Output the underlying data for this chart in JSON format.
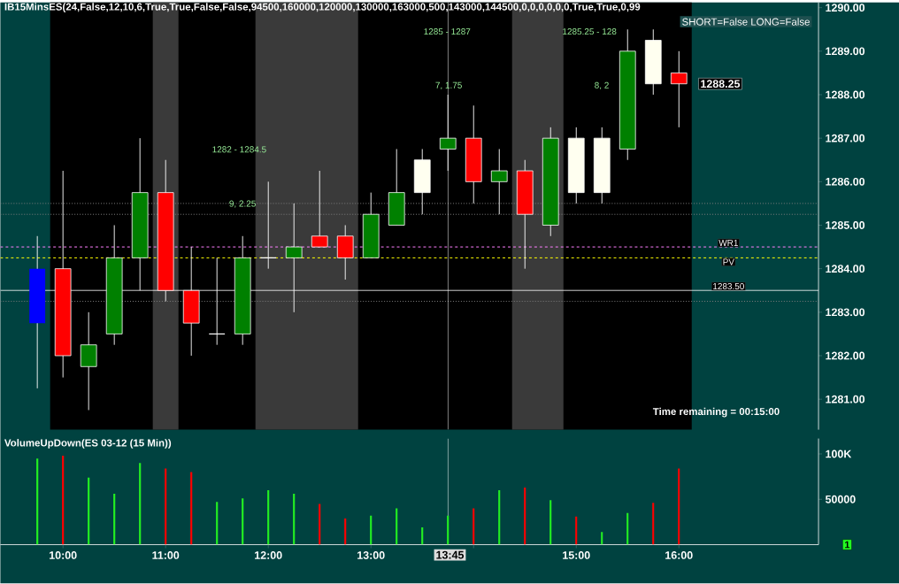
{
  "chart_data": [
    {
      "type": "candlestick",
      "title": "IB15MinsES(24,False,12,10,6,True,True,False,False,94500,160000,120000,130000,163000,500,143000,144500,0,0,0,0,0,0,True,True,0,99",
      "x": [
        9.75,
        10,
        10.25,
        10.5,
        10.75,
        11,
        11.25,
        11.5,
        11.75,
        12,
        12.25,
        12.5,
        12.75,
        13,
        13.25,
        13.5,
        13.75,
        14,
        14.25,
        14.5,
        14.75,
        15,
        15.25,
        15.5,
        15.75,
        16
      ],
      "ohlc": [
        [
          1282.75,
          1284.75,
          1281.25,
          1284.0
        ],
        [
          1284.0,
          1286.25,
          1281.5,
          1282.0
        ],
        [
          1281.75,
          1283.0,
          1280.75,
          1282.25
        ],
        [
          1282.5,
          1285.0,
          1282.25,
          1284.25
        ],
        [
          1284.25,
          1287.0,
          1283.5,
          1285.75
        ],
        [
          1285.75,
          1286.5,
          1283.25,
          1283.5
        ],
        [
          1283.5,
          1284.5,
          1282.0,
          1282.75
        ],
        [
          1282.5,
          1284.25,
          1282.25,
          1282.5
        ],
        [
          1282.5,
          1284.75,
          1282.25,
          1284.25
        ],
        [
          1284.25,
          1286.0,
          1284.0,
          1284.25
        ],
        [
          1284.25,
          1285.5,
          1283.0,
          1284.5
        ],
        [
          1284.75,
          1286.25,
          1284.5,
          1284.5
        ],
        [
          1284.75,
          1285.0,
          1283.75,
          1284.25
        ],
        [
          1284.25,
          1285.75,
          1284.25,
          1285.25
        ],
        [
          1285.0,
          1286.75,
          1285.0,
          1285.75
        ],
        [
          1285.75,
          1286.75,
          1285.25,
          1286.5
        ],
        [
          1286.75,
          1288.0,
          1286.25,
          1287.0
        ],
        [
          1287.0,
          1287.75,
          1285.5,
          1286.0
        ],
        [
          1286.0,
          1286.75,
          1285.25,
          1286.25
        ],
        [
          1286.25,
          1286.5,
          1284.0,
          1285.25
        ],
        [
          1285.0,
          1287.25,
          1284.75,
          1287.0
        ],
        [
          1285.75,
          1287.25,
          1285.5,
          1287.0
        ],
        [
          1285.75,
          1287.25,
          1285.5,
          1287.0
        ],
        [
          1286.75,
          1289.5,
          1286.5,
          1289.0
        ],
        [
          1288.25,
          1289.5,
          1288.0,
          1289.25
        ],
        [
          1288.5,
          1289.0,
          1287.25,
          1288.25
        ]
      ],
      "colors": [
        "#0000ff",
        "#ff0000",
        "#008000",
        "#008000",
        "#008000",
        "#ff0000",
        "#ff0000",
        "#ffffff",
        "#008000",
        "#ffffff",
        "#008000",
        "#ff0000",
        "#ff0000",
        "#008000",
        "#008000",
        "#fffff0",
        "#008000",
        "#ff0000",
        "#008000",
        "#ff0000",
        "#008000",
        "#fffff0",
        "#fffff0",
        "#008000",
        "#fffff0",
        "#ff0000"
      ],
      "xlim": [
        9.39,
        17.36
      ],
      "ylim": [
        1280.3,
        1290.12
      ],
      "yticks": [
        {
          "value": 1281,
          "label": "1281.00"
        },
        {
          "value": 1282,
          "label": "1282.00"
        },
        {
          "value": 1283,
          "label": "1283.00"
        },
        {
          "value": 1284,
          "label": "1284.00"
        },
        {
          "value": 1285,
          "label": "1285.00"
        },
        {
          "value": 1286,
          "label": "1286.00"
        },
        {
          "value": 1287,
          "label": "1287.00"
        },
        {
          "value": 1288,
          "label": "1288.00"
        },
        {
          "value": 1289,
          "label": "1289.00"
        },
        {
          "value": 1290,
          "label": "1290.00"
        }
      ],
      "tick_labels": "y",
      "bands": [
        {
          "axis": "x",
          "from": 9.875,
          "to": 16.125,
          "color": "#000000"
        },
        {
          "axis": "x",
          "from": 10.875,
          "to": 11.125,
          "color": "#3a3a3a"
        },
        {
          "axis": "x",
          "from": 11.875,
          "to": 12.875,
          "color": "#3a3a3a"
        },
        {
          "axis": "x",
          "from": 14.375,
          "to": 14.875,
          "color": "#3a3a3a"
        }
      ],
      "ref_lines": [
        {
          "axis": "y",
          "value": 1285.5,
          "color": "#808080",
          "line_style": "dotted"
        },
        {
          "axis": "y",
          "value": 1285.25,
          "color": "#808080",
          "line_style": "dotted"
        },
        {
          "axis": "y",
          "value": 1283.25,
          "color": "#808080",
          "line_style": "dotted"
        },
        {
          "axis": "y",
          "value": 1284.5,
          "label": "WR1",
          "color": "#ff80ff",
          "line_style": "dashed"
        },
        {
          "axis": "y",
          "value": 1284.25,
          "label": "PV",
          "color": "#ffff00",
          "line_style": "dashed"
        },
        {
          "axis": "y",
          "value": 1283.5,
          "label": "1283.50",
          "color": "#ffffff",
          "line_style": "solid"
        },
        {
          "axis": "x",
          "value": 13.75,
          "color": "#ffffff",
          "line_style": "solid"
        }
      ],
      "annotations": [
        "SHORT=False LONG=False",
        "Time remaining = 00:15:00",
        "1282 - 1284.5",
        "9, 2.25",
        "1285 - 1287",
        "7, 1.75",
        "1285.25 - 128",
        "8, 2",
        {
          "text": "1288.25",
          "x": 16,
          "y": 1288.25
        }
      ]
    },
    {
      "type": "bar",
      "title": "VolumeUpDown(ES 03-12 (15 Min))",
      "x": [
        9.75,
        10,
        10.25,
        10.5,
        10.75,
        11,
        11.25,
        11.5,
        11.75,
        12,
        12.25,
        12.5,
        12.75,
        13,
        13.25,
        13.5,
        13.75,
        14,
        14.25,
        14.5,
        14.75,
        15,
        15.25,
        15.5,
        15.75,
        16
      ],
      "values": [
        95000,
        98000,
        74000,
        56000,
        90000,
        84000,
        80000,
        47000,
        51000,
        60000,
        56000,
        45000,
        29000,
        32000,
        40000,
        19000,
        32000,
        40000,
        60000,
        63000,
        49000,
        31000,
        14000,
        35000,
        46000,
        84000
      ],
      "colors": [
        "#22ee22",
        "#ff0000",
        "#22ee22",
        "#22ee22",
        "#22ee22",
        "#ff0000",
        "#ff0000",
        "#22ee22",
        "#22ee22",
        "#22ee22",
        "#22ee22",
        "#ff0000",
        "#ff0000",
        "#22ee22",
        "#22ee22",
        "#22ee22",
        "#22ee22",
        "#ff0000",
        "#22ee22",
        "#ff0000",
        "#22ee22",
        "#ff0000",
        "#22ee22",
        "#22ee22",
        "#ff0000",
        "#ff0000"
      ],
      "xlim": [
        9.39,
        17.36
      ],
      "ylim": [
        0,
        117000
      ],
      "xticks": [
        {
          "value": 10,
          "label": "10:00"
        },
        {
          "value": 11,
          "label": "11:00"
        },
        {
          "value": 12,
          "label": "12:00"
        },
        {
          "value": 13,
          "label": "13:00"
        },
        {
          "value": 14,
          "label": null
        },
        {
          "value": 15,
          "label": "15:00"
        },
        {
          "value": 16,
          "label": "16:00"
        }
      ],
      "yticks": [
        50000,
        {
          "value": 100000,
          "label": "100K"
        }
      ],
      "ref_lines": [
        {
          "axis": "x",
          "value": 13.75,
          "color": "#ffffff",
          "line_style": "solid"
        }
      ],
      "annotations": [
        "1",
        "13:45"
      ]
    }
  ]
}
